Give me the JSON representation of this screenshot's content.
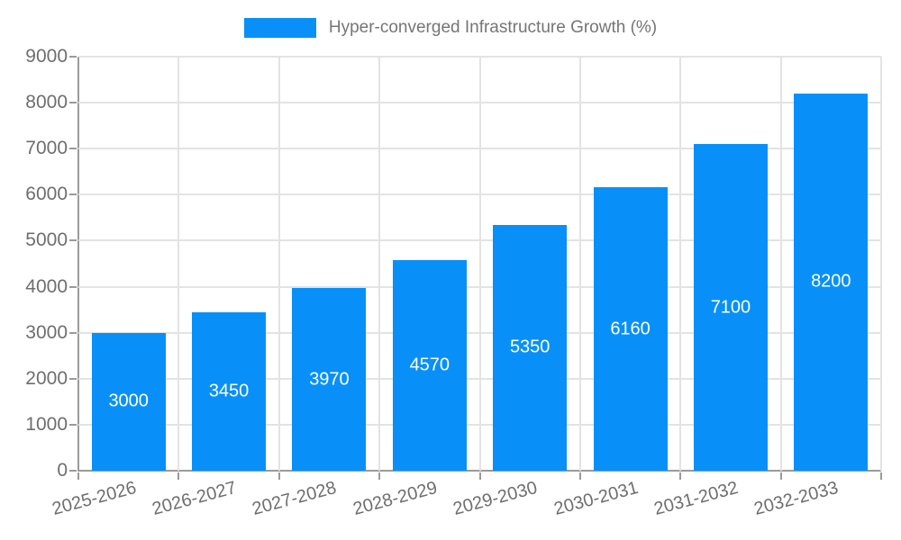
{
  "chart_data": {
    "type": "bar",
    "title": "",
    "legend": {
      "label": "Hyper-converged Infrastructure Growth (%)",
      "position": "top-center"
    },
    "categories": [
      "2025-2026",
      "2026-2027",
      "2027-2028",
      "2028-2029",
      "2029-2030",
      "2030-2031",
      "2031-2032",
      "2032-2033"
    ],
    "series": [
      {
        "name": "Hyper-converged Infrastructure Growth (%)",
        "values": [
          3000,
          3450,
          3970,
          4570,
          5350,
          6160,
          7100,
          8200
        ]
      }
    ],
    "data_labels": [
      "3000",
      "3450",
      "3970",
      "4570",
      "5350",
      "6160",
      "7100",
      "8200"
    ],
    "xlabel": "",
    "ylabel": "",
    "ylim": [
      0,
      9000
    ],
    "ytick_step": 1000,
    "ytick_labels": [
      "0",
      "1000",
      "2000",
      "3000",
      "4000",
      "5000",
      "6000",
      "7000",
      "8000",
      "9000"
    ],
    "grid": true,
    "colors": {
      "bar": "#0890f8",
      "bar_value_text": "#ffffff",
      "axis_text": "#6e6e6e",
      "legend_text": "#757575",
      "gridline": "#e3e3e3",
      "axis_line": "#9a9a9a",
      "background": "#ffffff"
    }
  }
}
